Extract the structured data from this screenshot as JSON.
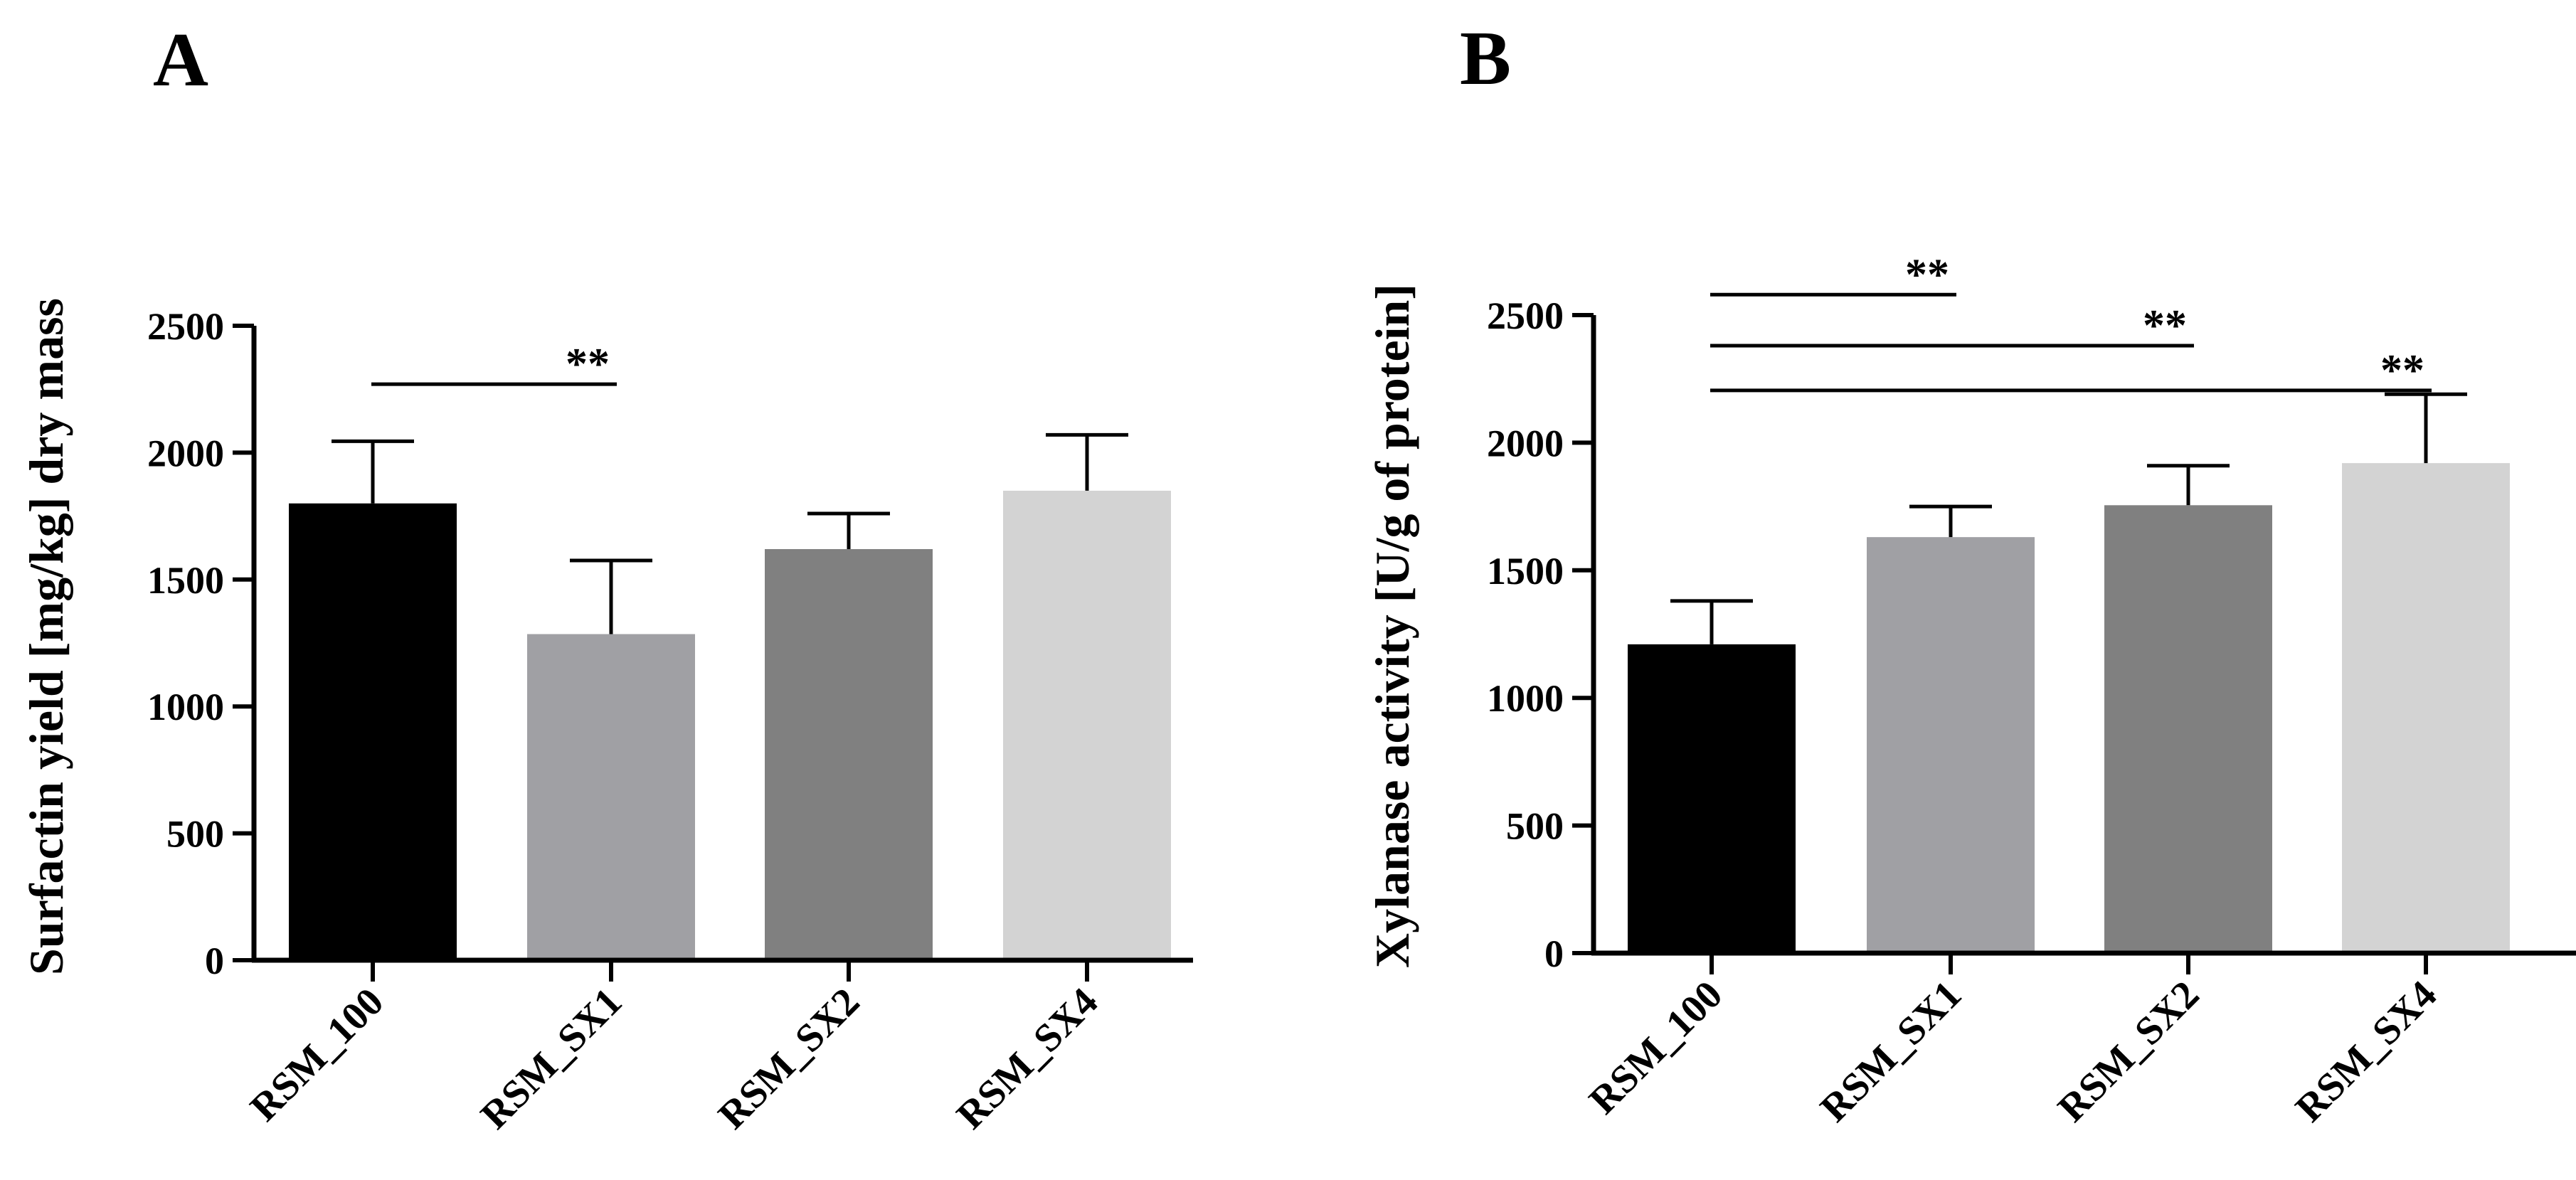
{
  "chart_data": [
    {
      "panel": "A",
      "type": "bar",
      "categories": [
        "RSM_100",
        "RSM_SX1",
        "RSM_SX2",
        "RSM_SX4"
      ],
      "values": [
        1800,
        1285,
        1620,
        1850
      ],
      "errors": [
        245,
        290,
        140,
        220
      ],
      "colors": [
        "#000000",
        "#a0a0a4",
        "#808080",
        "#d3d3d3"
      ],
      "ylabel": "Surfactin yield [mg/kg] dry mass",
      "ylim": [
        0,
        2500
      ],
      "yticks": [
        0,
        500,
        1000,
        1500,
        2000,
        2500
      ],
      "significance": [
        {
          "from": 0,
          "to": 1,
          "level": 2270,
          "label": "**"
        }
      ]
    },
    {
      "panel": "B",
      "type": "bar",
      "categories": [
        "RSM_100",
        "RSM_SX1",
        "RSM_SX2",
        "RSM_SX4"
      ],
      "values": [
        1210,
        1630,
        1755,
        1920
      ],
      "errors": [
        170,
        120,
        155,
        270
      ],
      "colors": [
        "#000000",
        "#a0a0a4",
        "#808080",
        "#d3d3d3"
      ],
      "ylabel": "Xylanase activity [U/g of protein]",
      "ylim": [
        0,
        2500
      ],
      "yticks": [
        0,
        500,
        1000,
        1500,
        2000,
        2500
      ],
      "significance": [
        {
          "from": 0,
          "to": 1,
          "level": 2580,
          "label": "**"
        },
        {
          "from": 0,
          "to": 2,
          "level": 2380,
          "label": "**"
        },
        {
          "from": 0,
          "to": 3,
          "level": 2205,
          "label": "**"
        }
      ]
    }
  ]
}
